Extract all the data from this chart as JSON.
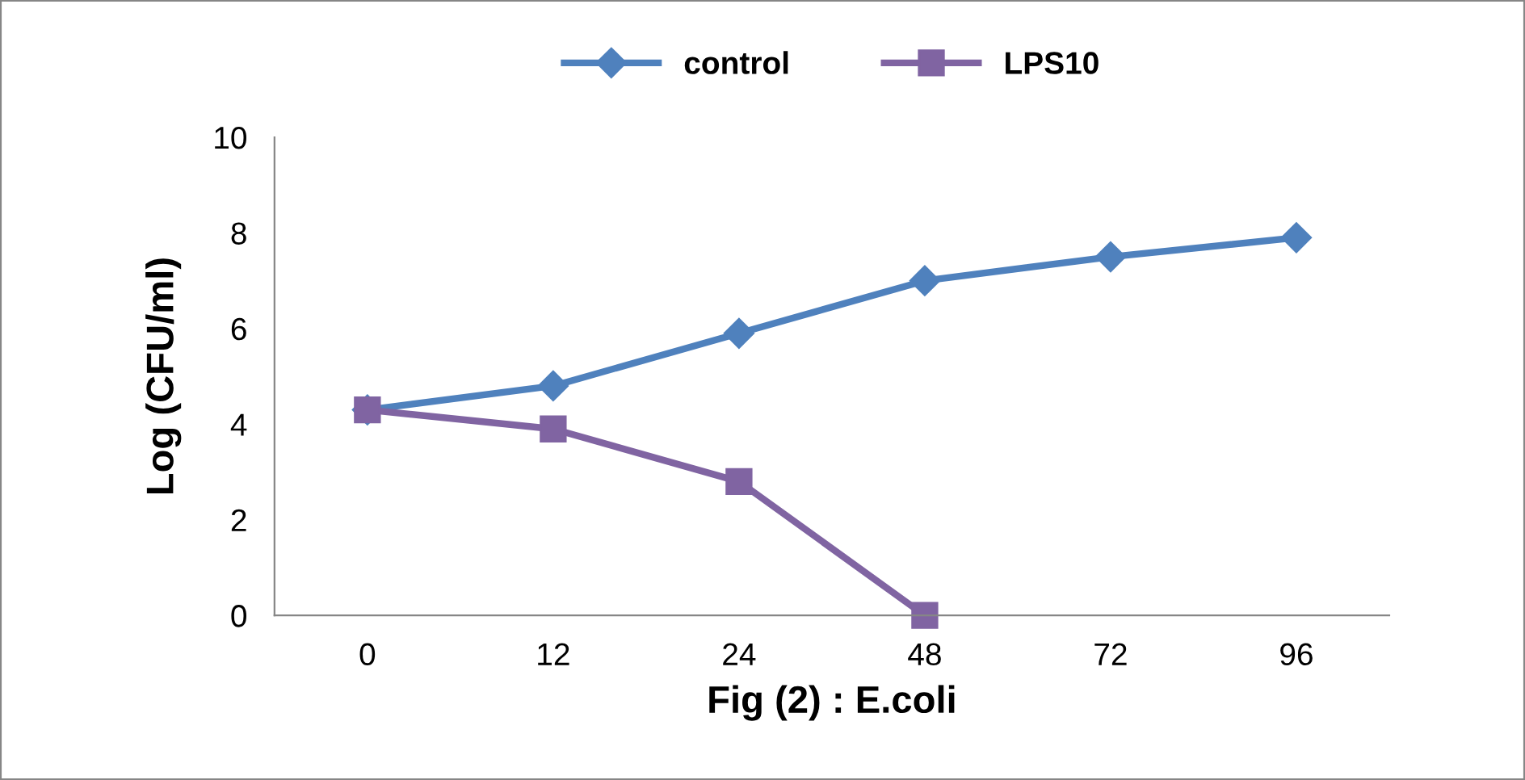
{
  "chart_data": {
    "type": "line",
    "xlabel": "Fig (2) : E.coli",
    "ylabel": "Log (CFU/ml)",
    "categories": [
      "0",
      "12",
      "24",
      "48",
      "72",
      "96"
    ],
    "series": [
      {
        "name": "control",
        "color": "#4f81bd",
        "marker": "diamond",
        "values": [
          4.3,
          4.8,
          5.9,
          7.0,
          7.5,
          7.9
        ]
      },
      {
        "name": "LPS10",
        "color": "#8064a2",
        "marker": "square",
        "values": [
          4.3,
          3.9,
          2.8,
          0.0,
          null,
          null
        ]
      }
    ],
    "ylim": [
      0,
      10
    ],
    "yticks": [
      0,
      2,
      4,
      6,
      8,
      10
    ],
    "grid": false,
    "legend": "top",
    "line_style": "solid"
  }
}
